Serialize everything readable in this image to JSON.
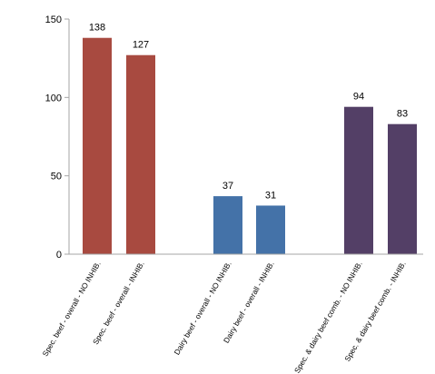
{
  "chart_data": {
    "type": "bar",
    "title": "",
    "xlabel": "",
    "ylabel": "",
    "ylim": [
      0,
      150
    ],
    "y_ticks": [
      "0",
      "50",
      "100",
      "150"
    ],
    "grid": false,
    "categories": [
      "Spec. beef - overall - NO INHIB.",
      "Spec. beef - overall - INHIB.",
      "Dairy beef - overall - NO INHIB.",
      "Dairy beef - overall - INHIB.",
      "Spec. & dairy beef comb. - NO INHIB.",
      "Spec. & dairy beef comb. - INHIB."
    ],
    "values": [
      138,
      127,
      37,
      31,
      94,
      83
    ],
    "data_labels": [
      "138",
      "127",
      "37",
      "31",
      "94",
      "83"
    ],
    "bar_colors": [
      "#a84a40",
      "#a84a40",
      "#4472a8",
      "#4472a8",
      "#533f66",
      "#533f66"
    ]
  }
}
